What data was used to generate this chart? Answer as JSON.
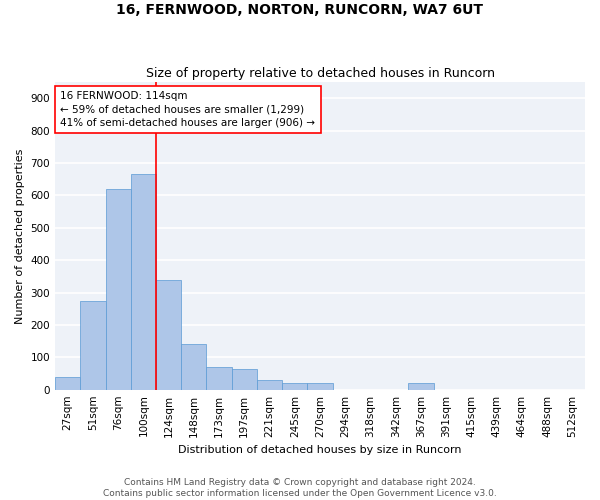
{
  "title": "16, FERNWOOD, NORTON, RUNCORN, WA7 6UT",
  "subtitle": "Size of property relative to detached houses in Runcorn",
  "xlabel": "Distribution of detached houses by size in Runcorn",
  "ylabel": "Number of detached properties",
  "categories": [
    "27sqm",
    "51sqm",
    "76sqm",
    "100sqm",
    "124sqm",
    "148sqm",
    "173sqm",
    "197sqm",
    "221sqm",
    "245sqm",
    "270sqm",
    "294sqm",
    "318sqm",
    "342sqm",
    "367sqm",
    "391sqm",
    "415sqm",
    "439sqm",
    "464sqm",
    "488sqm",
    "512sqm"
  ],
  "values": [
    40,
    275,
    620,
    665,
    340,
    140,
    70,
    65,
    30,
    20,
    20,
    0,
    0,
    0,
    20,
    0,
    0,
    0,
    0,
    0,
    0
  ],
  "bar_color": "#aec6e8",
  "bar_edge_color": "#5a9ad4",
  "vline_x": 3.5,
  "vline_color": "red",
  "annotation_line1": "16 FERNWOOD: 114sqm",
  "annotation_line2": "← 59% of detached houses are smaller (1,299)",
  "annotation_line3": "41% of semi-detached houses are larger (906) →",
  "annotation_box_color": "white",
  "annotation_box_edgecolor": "red",
  "ylim": [
    0,
    950
  ],
  "yticks": [
    0,
    100,
    200,
    300,
    400,
    500,
    600,
    700,
    800,
    900
  ],
  "footnote": "Contains HM Land Registry data © Crown copyright and database right 2024.\nContains public sector information licensed under the Open Government Licence v3.0.",
  "background_color": "#eef2f8",
  "grid_color": "white",
  "title_fontsize": 10,
  "subtitle_fontsize": 9,
  "axis_label_fontsize": 8,
  "tick_fontsize": 7.5,
  "annotation_fontsize": 7.5,
  "footnote_fontsize": 6.5
}
